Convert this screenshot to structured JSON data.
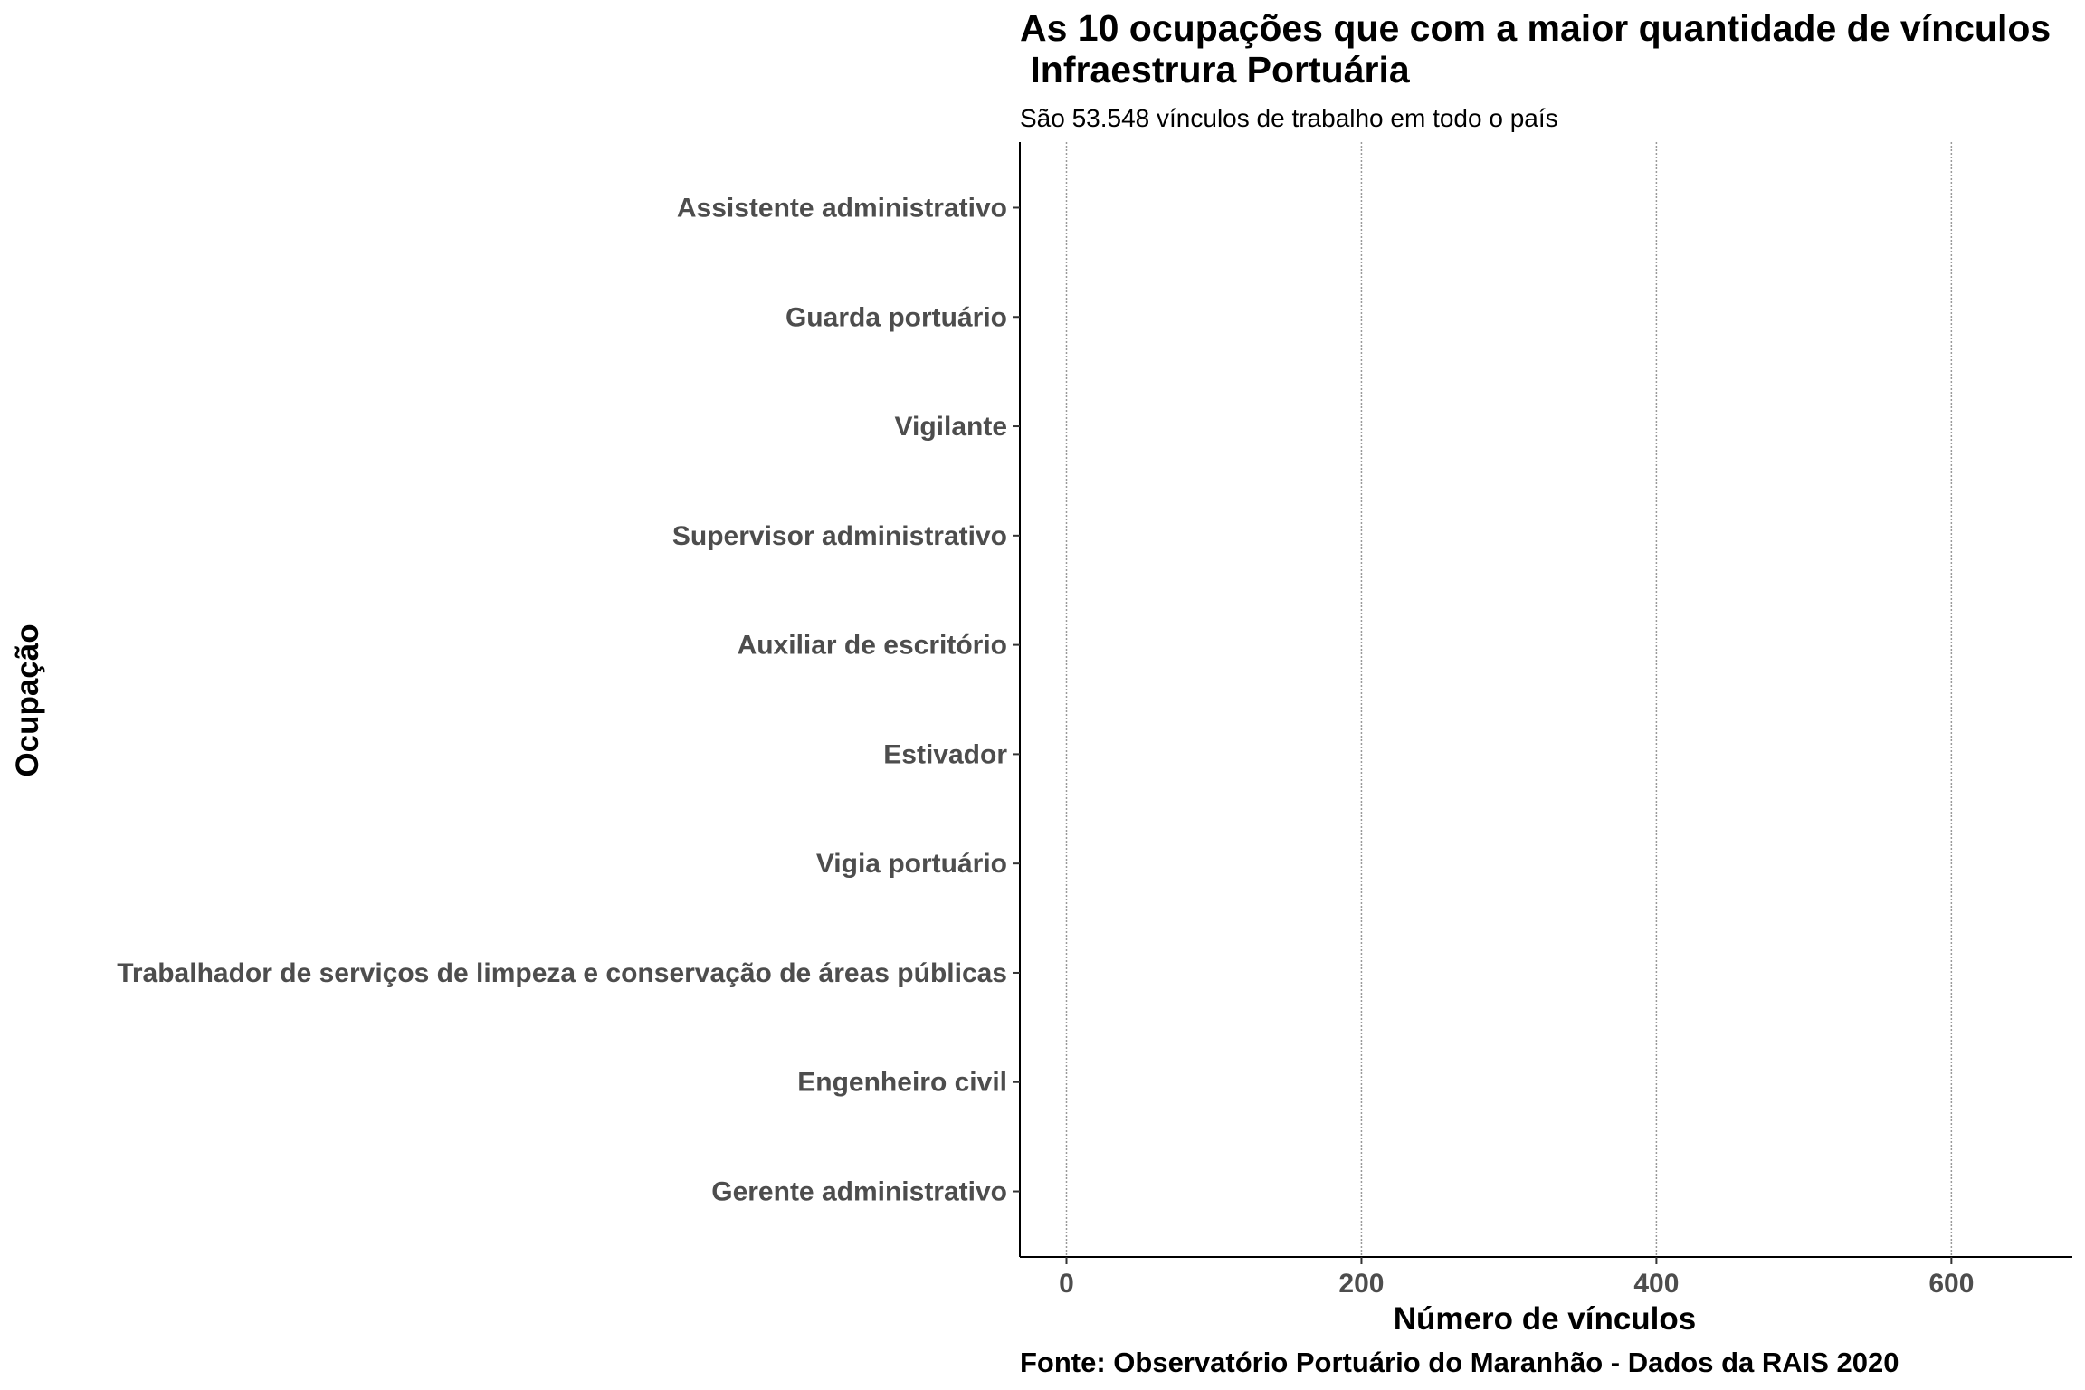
{
  "chart_data": {
    "type": "bar",
    "orientation": "horizontal",
    "title": "As 10 ocupações que com a maior quantidade de vínculos\n Infraestrura Portuária",
    "subtitle": "São 53.548 vínculos de trabalho em todo o país",
    "x_label": "Número de vínculos",
    "y_label": "Ocupação",
    "source": "Fonte: Observatório Portuário do Maranhão - Dados da RAIS 2020",
    "categories": [
      "Assistente administrativo",
      "Guarda portuário",
      "Vigilante",
      "Supervisor administrativo",
      "Auxiliar de escritório",
      "Estivador",
      "Vigia portuário",
      "Trabalhador de serviços de limpeza e conservação de áreas públicas",
      "Engenheiro civil",
      "Gerente administrativo"
    ],
    "values": [
      null,
      null,
      null,
      null,
      null,
      null,
      null,
      null,
      null,
      null
    ],
    "color": "#4472c4",
    "xlim": [
      -31.6,
      682
    ],
    "xticks": [
      0,
      200,
      400,
      600
    ],
    "grid": true
  }
}
